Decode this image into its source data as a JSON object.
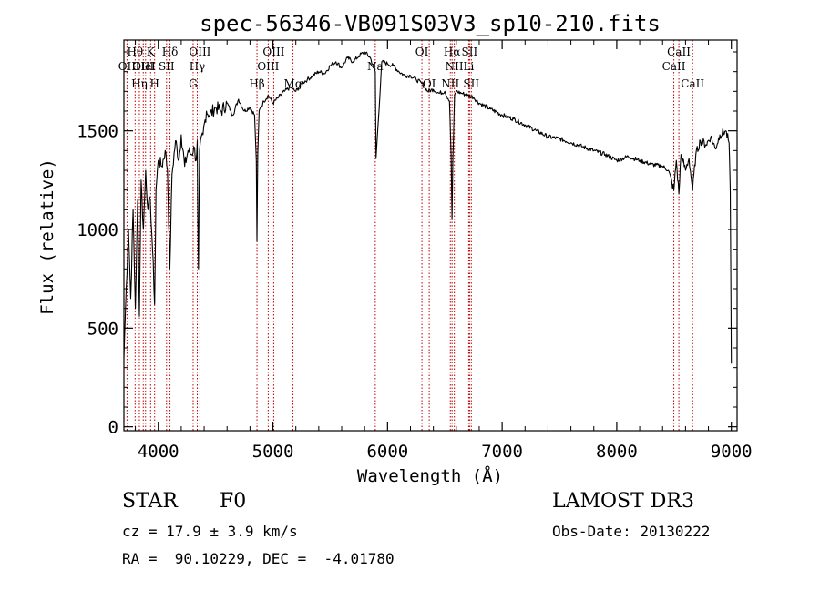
{
  "chart_data": {
    "type": "line",
    "title": "spec-56346-VB091S03V3_sp10-210.fits",
    "xlabel": "Wavelength (Å)",
    "ylabel": "Flux (relative)",
    "xlim": [
      3700,
      9050
    ],
    "ylim": [
      -20,
      1960
    ],
    "x_ticks": [
      4000,
      5000,
      6000,
      7000,
      8000,
      9000
    ],
    "x_tick_labels": [
      "4000",
      "5000",
      "6000",
      "7000",
      "8000",
      "9000"
    ],
    "y_ticks": [
      0,
      500,
      1000,
      1500
    ],
    "y_tick_labels": [
      "0",
      "500",
      "1000",
      "1500"
    ],
    "series": [
      {
        "name": "spectrum",
        "x": [
          3700,
          3720,
          3740,
          3760,
          3780,
          3800,
          3820,
          3835,
          3850,
          3870,
          3890,
          3910,
          3930,
          3950,
          3968,
          3980,
          4000,
          4030,
          4060,
          4080,
          4101,
          4120,
          4150,
          4180,
          4200,
          4230,
          4260,
          4290,
          4310,
          4330,
          4340,
          4345,
          4350,
          4360,
          4390,
          4420,
          4450,
          4500,
          4550,
          4600,
          4650,
          4700,
          4750,
          4800,
          4840,
          4855,
          4861,
          4868,
          4880,
          4920,
          4960,
          5000,
          5050,
          5100,
          5150,
          5200,
          5250,
          5300,
          5350,
          5400,
          5450,
          5500,
          5550,
          5600,
          5650,
          5700,
          5750,
          5800,
          5850,
          5893,
          5900,
          5950,
          6000,
          6050,
          6100,
          6150,
          6200,
          6250,
          6300,
          6350,
          6400,
          6450,
          6500,
          6540,
          6555,
          6563,
          6570,
          6585,
          6600,
          6650,
          6700,
          6750,
          6800,
          6900,
          7000,
          7100,
          7200,
          7300,
          7400,
          7500,
          7600,
          7700,
          7800,
          7900,
          8000,
          8100,
          8200,
          8300,
          8400,
          8450,
          8498,
          8520,
          8542,
          8560,
          8600,
          8630,
          8662,
          8690,
          8730,
          8780,
          8820,
          8860,
          8900,
          8950,
          8980,
          8990,
          9000
        ],
        "y": [
          350,
          700,
          1000,
          650,
          1100,
          600,
          1150,
          560,
          1250,
          1000,
          1300,
          1100,
          1150,
          900,
          620,
          1200,
          1350,
          1320,
          1400,
          1300,
          800,
          1280,
          1450,
          1350,
          1480,
          1320,
          1400,
          1380,
          1420,
          1350,
          1450,
          1050,
          800,
          1400,
          1480,
          1600,
          1580,
          1620,
          1600,
          1640,
          1580,
          1660,
          1600,
          1620,
          1580,
          1350,
          940,
          1380,
          1600,
          1650,
          1680,
          1640,
          1670,
          1700,
          1720,
          1700,
          1740,
          1760,
          1780,
          1800,
          1790,
          1830,
          1850,
          1820,
          1870,
          1850,
          1880,
          1900,
          1870,
          1800,
          1360,
          1850,
          1840,
          1830,
          1800,
          1780,
          1780,
          1760,
          1740,
          1700,
          1710,
          1690,
          1700,
          1650,
          1380,
          1050,
          1350,
          1680,
          1700,
          1690,
          1680,
          1670,
          1640,
          1610,
          1580,
          1560,
          1530,
          1500,
          1470,
          1460,
          1440,
          1420,
          1400,
          1380,
          1350,
          1370,
          1350,
          1330,
          1320,
          1300,
          1200,
          1350,
          1180,
          1380,
          1300,
          1360,
          1200,
          1380,
          1450,
          1430,
          1470,
          1410,
          1480,
          1500,
          1440,
          1200,
          320
        ]
      }
    ],
    "line_markers": [
      {
        "x": 3727,
        "label": "OII",
        "row": 2
      },
      {
        "x": 3798,
        "label": "Hθ",
        "row": 1
      },
      {
        "x": 3835,
        "label": "Hη",
        "row": 3
      },
      {
        "x": 3869,
        "label": "OIII",
        "row": 2
      },
      {
        "x": 3889,
        "label": "HeI",
        "row": 2
      },
      {
        "x": 3933,
        "label": "K",
        "row": 1
      },
      {
        "x": 3968,
        "label": "H",
        "row": 3
      },
      {
        "x": 4072,
        "label": "SII",
        "row": 2
      },
      {
        "x": 4102,
        "label": "Hδ",
        "row": 1
      },
      {
        "x": 4304,
        "label": "G",
        "row": 3
      },
      {
        "x": 4340,
        "label": "Hγ",
        "row": 2
      },
      {
        "x": 4363,
        "label": "OIII",
        "row": 1
      },
      {
        "x": 4861,
        "label": "Hβ",
        "row": 3
      },
      {
        "x": 4959,
        "label": "OIII",
        "row": 2
      },
      {
        "x": 5007,
        "label": "OIII",
        "row": 1
      },
      {
        "x": 5175,
        "label": "Mg",
        "row": 3
      },
      {
        "x": 5893,
        "label": "Na",
        "row": 2
      },
      {
        "x": 6300,
        "label": "OI",
        "row": 1
      },
      {
        "x": 6364,
        "label": "OI",
        "row": 3
      },
      {
        "x": 6548,
        "label": "NII",
        "row": 3
      },
      {
        "x": 6563,
        "label": "Hα",
        "row": 1
      },
      {
        "x": 6583,
        "label": "NII",
        "row": 2
      },
      {
        "x": 6708,
        "label": "Li",
        "row": 2
      },
      {
        "x": 6716,
        "label": "SII",
        "row": 1
      },
      {
        "x": 6731,
        "label": "SII",
        "row": 3
      },
      {
        "x": 8498,
        "label": "CaII",
        "row": 2
      },
      {
        "x": 8542,
        "label": "CaII",
        "row": 1
      },
      {
        "x": 8662,
        "label": "CaII",
        "row": 3
      }
    ],
    "marker_color": "#c00000"
  },
  "info": {
    "object_class": "STAR",
    "subclass": "F0",
    "survey": "LAMOST DR3",
    "redshift": "cz = 17.9 ± 3.9 km/s",
    "obs_date": "Obs-Date: 20130222",
    "coords": "RA =  90.10229, DEC =  -4.01780"
  }
}
